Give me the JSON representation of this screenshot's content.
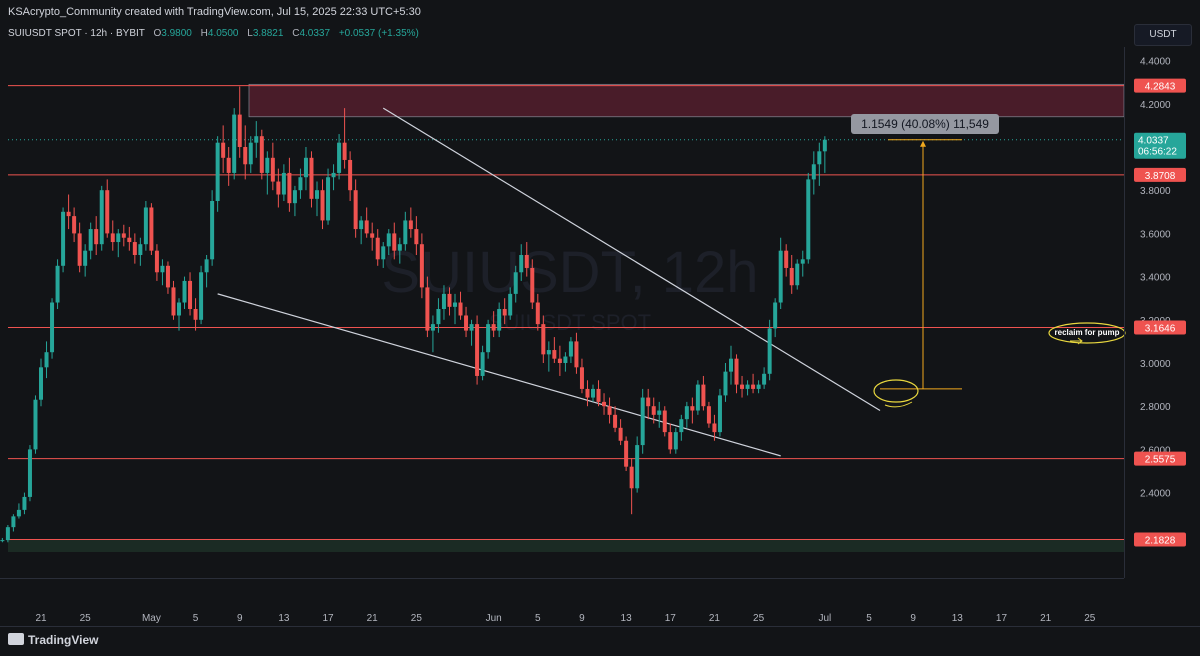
{
  "header": {
    "attribution": "KSAcrypto_Community created with TradingView.com, Jul 15, 2025 22:33 UTC+5:30"
  },
  "legend": {
    "symbol": "SUIUSDT SPOT · 12h · BYBIT",
    "open_label": "O",
    "open": "3.9800",
    "high_label": "H",
    "high": "4.0500",
    "low_label": "L",
    "low": "3.8821",
    "close_label": "C",
    "close": "4.0337",
    "change": "+0.0537 (+1.35%)"
  },
  "unit_button": "USDT",
  "watermark": {
    "main": "SUIUSDT, 12h",
    "sub": "SUIUSDT SPOT"
  },
  "measure_label": "1.1549 (40.08%) 11,549",
  "annotation_text": "reclaim for pump",
  "price_ticks": [
    "4.4000",
    "4.2000",
    "4.0000",
    "3.8000",
    "3.6000",
    "3.4000",
    "3.2000",
    "3.0000",
    "2.8000",
    "2.6000",
    "2.4000"
  ],
  "level_badges": [
    {
      "label": "4.2843",
      "price": 4.2843
    },
    {
      "label": "3.8708",
      "price": 3.8708
    },
    {
      "label": "3.1646",
      "price": 3.1646
    },
    {
      "label": "2.5575",
      "price": 2.5575
    },
    {
      "label": "2.1828",
      "price": 2.1828
    }
  ],
  "current_price": {
    "label": "4.0337",
    "countdown": "06:56:22",
    "price": 4.0337
  },
  "time_ticks": [
    {
      "label": "21",
      "date": "2025-04-21"
    },
    {
      "label": "25",
      "date": "2025-04-25"
    },
    {
      "label": "May",
      "date": "2025-05-01"
    },
    {
      "label": "5",
      "date": "2025-05-05"
    },
    {
      "label": "9",
      "date": "2025-05-09"
    },
    {
      "label": "13",
      "date": "2025-05-13"
    },
    {
      "label": "17",
      "date": "2025-05-17"
    },
    {
      "label": "21",
      "date": "2025-05-21"
    },
    {
      "label": "25",
      "date": "2025-05-25"
    },
    {
      "label": "Jun",
      "date": "2025-06-01"
    },
    {
      "label": "5",
      "date": "2025-06-05"
    },
    {
      "label": "9",
      "date": "2025-06-09"
    },
    {
      "label": "13",
      "date": "2025-06-13"
    },
    {
      "label": "17",
      "date": "2025-06-17"
    },
    {
      "label": "21",
      "date": "2025-06-21"
    },
    {
      "label": "25",
      "date": "2025-06-25"
    },
    {
      "label": "Jul",
      "date": "2025-07-01"
    },
    {
      "label": "5",
      "date": "2025-07-05"
    },
    {
      "label": "9",
      "date": "2025-07-09"
    },
    {
      "label": "13",
      "date": "2025-07-13"
    },
    {
      "label": "17",
      "date": "2025-07-17"
    },
    {
      "label": "21",
      "date": "2025-07-21"
    },
    {
      "label": "25",
      "date": "2025-07-25"
    }
  ],
  "footer": {
    "brand": "TradingView"
  },
  "colors": {
    "up": "#26a69a",
    "down": "#ef5350",
    "level": "#ef5350",
    "trendline": "#cfd3dc",
    "measure": "#f2a91e",
    "zone": "#5c1f30"
  },
  "chart_data": {
    "type": "candlestick",
    "interval": "12h",
    "start_date": "2025-04-17",
    "y_axis_range": [
      2.18,
      4.47
    ],
    "horizontal_levels": [
      4.2843,
      3.8708,
      3.1646,
      2.5575,
      2.1828
    ],
    "resistance_zone": [
      4.14,
      4.29
    ],
    "trendlines": [
      {
        "from": {
          "date": "2025-05-22",
          "price": 4.18
        },
        "to": {
          "date": "2025-07-06",
          "price": 2.78
        }
      },
      {
        "from": {
          "date": "2025-05-07",
          "price": 3.32
        },
        "to": {
          "date": "2025-06-27",
          "price": 2.57
        }
      }
    ],
    "measure": {
      "from_price": 2.88,
      "to_price": 4.0337,
      "change": "1.1549 (40.08%) 11,549"
    },
    "candles": [
      [
        2.17,
        2.18,
        2.16,
        2.18
      ],
      [
        2.18,
        2.19,
        2.17,
        2.18
      ],
      [
        2.18,
        2.25,
        2.17,
        2.24
      ],
      [
        2.24,
        2.3,
        2.22,
        2.29
      ],
      [
        2.29,
        2.35,
        2.28,
        2.32
      ],
      [
        2.32,
        2.4,
        2.3,
        2.38
      ],
      [
        2.38,
        2.62,
        2.36,
        2.6
      ],
      [
        2.6,
        2.85,
        2.58,
        2.83
      ],
      [
        2.83,
        3.02,
        2.8,
        2.98
      ],
      [
        2.98,
        3.1,
        2.93,
        3.05
      ],
      [
        3.05,
        3.3,
        3.02,
        3.28
      ],
      [
        3.28,
        3.48,
        3.25,
        3.45
      ],
      [
        3.45,
        3.72,
        3.42,
        3.7
      ],
      [
        3.7,
        3.78,
        3.62,
        3.68
      ],
      [
        3.68,
        3.72,
        3.56,
        3.6
      ],
      [
        3.6,
        3.65,
        3.42,
        3.45
      ],
      [
        3.45,
        3.55,
        3.4,
        3.52
      ],
      [
        3.52,
        3.65,
        3.48,
        3.62
      ],
      [
        3.62,
        3.68,
        3.5,
        3.55
      ],
      [
        3.55,
        3.82,
        3.52,
        3.8
      ],
      [
        3.8,
        3.85,
        3.58,
        3.6
      ],
      [
        3.6,
        3.66,
        3.52,
        3.56
      ],
      [
        3.56,
        3.62,
        3.49,
        3.6
      ],
      [
        3.6,
        3.64,
        3.54,
        3.58
      ],
      [
        3.58,
        3.63,
        3.52,
        3.56
      ],
      [
        3.56,
        3.6,
        3.46,
        3.5
      ],
      [
        3.5,
        3.58,
        3.45,
        3.55
      ],
      [
        3.55,
        3.75,
        3.52,
        3.72
      ],
      [
        3.72,
        3.74,
        3.5,
        3.52
      ],
      [
        3.52,
        3.55,
        3.38,
        3.42
      ],
      [
        3.42,
        3.48,
        3.36,
        3.45
      ],
      [
        3.45,
        3.47,
        3.32,
        3.35
      ],
      [
        3.35,
        3.38,
        3.2,
        3.22
      ],
      [
        3.22,
        3.3,
        3.15,
        3.28
      ],
      [
        3.28,
        3.4,
        3.25,
        3.38
      ],
      [
        3.38,
        3.42,
        3.22,
        3.25
      ],
      [
        3.25,
        3.3,
        3.15,
        3.2
      ],
      [
        3.2,
        3.45,
        3.18,
        3.42
      ],
      [
        3.42,
        3.5,
        3.35,
        3.48
      ],
      [
        3.48,
        3.8,
        3.45,
        3.75
      ],
      [
        3.75,
        4.05,
        3.7,
        4.02
      ],
      [
        4.02,
        4.1,
        3.88,
        3.95
      ],
      [
        3.95,
        4.0,
        3.82,
        3.88
      ],
      [
        3.88,
        4.18,
        3.85,
        4.15
      ],
      [
        4.15,
        4.28,
        3.95,
        4.0
      ],
      [
        4.0,
        4.1,
        3.85,
        3.92
      ],
      [
        3.92,
        4.05,
        3.88,
        4.02
      ],
      [
        4.02,
        4.12,
        3.95,
        4.05
      ],
      [
        4.05,
        4.08,
        3.85,
        3.88
      ],
      [
        3.88,
        3.98,
        3.78,
        3.95
      ],
      [
        3.95,
        4.02,
        3.8,
        3.84
      ],
      [
        3.84,
        3.9,
        3.72,
        3.78
      ],
      [
        3.78,
        3.92,
        3.75,
        3.88
      ],
      [
        3.88,
        3.95,
        3.7,
        3.74
      ],
      [
        3.74,
        3.82,
        3.68,
        3.8
      ],
      [
        3.8,
        3.9,
        3.76,
        3.86
      ],
      [
        3.86,
        4.0,
        3.8,
        3.95
      ],
      [
        3.95,
        3.98,
        3.72,
        3.76
      ],
      [
        3.76,
        3.84,
        3.68,
        3.8
      ],
      [
        3.8,
        3.85,
        3.62,
        3.66
      ],
      [
        3.66,
        3.9,
        3.64,
        3.86
      ],
      [
        3.86,
        3.92,
        3.8,
        3.88
      ],
      [
        3.88,
        4.06,
        3.85,
        4.02
      ],
      [
        4.02,
        4.18,
        3.9,
        3.94
      ],
      [
        3.94,
        3.98,
        3.75,
        3.8
      ],
      [
        3.8,
        3.85,
        3.58,
        3.62
      ],
      [
        3.62,
        3.68,
        3.55,
        3.66
      ],
      [
        3.66,
        3.72,
        3.58,
        3.6
      ],
      [
        3.6,
        3.65,
        3.52,
        3.58
      ],
      [
        3.58,
        3.62,
        3.45,
        3.48
      ],
      [
        3.48,
        3.56,
        3.44,
        3.54
      ],
      [
        3.54,
        3.62,
        3.5,
        3.6
      ],
      [
        3.6,
        3.65,
        3.48,
        3.52
      ],
      [
        3.52,
        3.58,
        3.46,
        3.55
      ],
      [
        3.55,
        3.7,
        3.52,
        3.66
      ],
      [
        3.66,
        3.72,
        3.58,
        3.62
      ],
      [
        3.62,
        3.68,
        3.5,
        3.55
      ],
      [
        3.55,
        3.6,
        3.3,
        3.35
      ],
      [
        3.35,
        3.4,
        3.12,
        3.15
      ],
      [
        3.15,
        3.22,
        3.05,
        3.18
      ],
      [
        3.18,
        3.3,
        3.14,
        3.25
      ],
      [
        3.25,
        3.36,
        3.2,
        3.32
      ],
      [
        3.32,
        3.35,
        3.22,
        3.26
      ],
      [
        3.26,
        3.32,
        3.18,
        3.28
      ],
      [
        3.28,
        3.33,
        3.2,
        3.22
      ],
      [
        3.22,
        3.26,
        3.12,
        3.15
      ],
      [
        3.15,
        3.2,
        3.08,
        3.18
      ],
      [
        3.18,
        3.22,
        2.9,
        2.94
      ],
      [
        2.94,
        3.08,
        2.92,
        3.05
      ],
      [
        3.05,
        3.2,
        3.02,
        3.18
      ],
      [
        3.18,
        3.24,
        3.12,
        3.15
      ],
      [
        3.15,
        3.28,
        3.12,
        3.25
      ],
      [
        3.25,
        3.3,
        3.18,
        3.22
      ],
      [
        3.22,
        3.35,
        3.2,
        3.32
      ],
      [
        3.32,
        3.45,
        3.28,
        3.42
      ],
      [
        3.42,
        3.55,
        3.38,
        3.5
      ],
      [
        3.5,
        3.56,
        3.4,
        3.44
      ],
      [
        3.44,
        3.48,
        3.25,
        3.28
      ],
      [
        3.28,
        3.32,
        3.15,
        3.18
      ],
      [
        3.18,
        3.22,
        3.0,
        3.04
      ],
      [
        3.04,
        3.1,
        2.96,
        3.06
      ],
      [
        3.06,
        3.12,
        3.0,
        3.02
      ],
      [
        3.02,
        3.08,
        2.94,
        3.0
      ],
      [
        3.0,
        3.05,
        2.96,
        3.03
      ],
      [
        3.03,
        3.12,
        3.0,
        3.1
      ],
      [
        3.1,
        3.14,
        2.95,
        2.98
      ],
      [
        2.98,
        3.02,
        2.86,
        2.88
      ],
      [
        2.88,
        2.92,
        2.8,
        2.84
      ],
      [
        2.84,
        2.9,
        2.82,
        2.88
      ],
      [
        2.88,
        2.92,
        2.8,
        2.82
      ],
      [
        2.82,
        2.86,
        2.76,
        2.8
      ],
      [
        2.8,
        2.84,
        2.72,
        2.76
      ],
      [
        2.76,
        2.8,
        2.68,
        2.7
      ],
      [
        2.7,
        2.74,
        2.62,
        2.64
      ],
      [
        2.64,
        2.66,
        2.5,
        2.52
      ],
      [
        2.52,
        2.56,
        2.3,
        2.42
      ],
      [
        2.42,
        2.66,
        2.4,
        2.62
      ],
      [
        2.62,
        2.88,
        2.58,
        2.84
      ],
      [
        2.84,
        2.88,
        2.74,
        2.8
      ],
      [
        2.8,
        2.84,
        2.72,
        2.76
      ],
      [
        2.76,
        2.82,
        2.7,
        2.78
      ],
      [
        2.78,
        2.8,
        2.66,
        2.68
      ],
      [
        2.68,
        2.72,
        2.58,
        2.6
      ],
      [
        2.6,
        2.7,
        2.58,
        2.68
      ],
      [
        2.68,
        2.76,
        2.64,
        2.74
      ],
      [
        2.74,
        2.82,
        2.7,
        2.8
      ],
      [
        2.8,
        2.84,
        2.72,
        2.78
      ],
      [
        2.78,
        2.92,
        2.76,
        2.9
      ],
      [
        2.9,
        2.94,
        2.78,
        2.8
      ],
      [
        2.8,
        2.82,
        2.7,
        2.72
      ],
      [
        2.72,
        2.76,
        2.64,
        2.68
      ],
      [
        2.68,
        2.88,
        2.66,
        2.85
      ],
      [
        2.85,
        3.0,
        2.82,
        2.96
      ],
      [
        2.96,
        3.08,
        2.9,
        3.02
      ],
      [
        3.02,
        3.04,
        2.86,
        2.9
      ],
      [
        2.9,
        2.94,
        2.84,
        2.88
      ],
      [
        2.88,
        2.92,
        2.85,
        2.9
      ],
      [
        2.9,
        2.95,
        2.86,
        2.88
      ],
      [
        2.88,
        2.92,
        2.86,
        2.9
      ],
      [
        2.9,
        2.98,
        2.88,
        2.95
      ],
      [
        2.95,
        3.2,
        2.92,
        3.16
      ],
      [
        3.16,
        3.3,
        3.12,
        3.28
      ],
      [
        3.28,
        3.58,
        3.25,
        3.52
      ],
      [
        3.52,
        3.55,
        3.4,
        3.44
      ],
      [
        3.44,
        3.5,
        3.32,
        3.36
      ],
      [
        3.36,
        3.48,
        3.34,
        3.46
      ],
      [
        3.46,
        3.52,
        3.4,
        3.48
      ],
      [
        3.48,
        3.88,
        3.46,
        3.85
      ],
      [
        3.85,
        3.98,
        3.78,
        3.92
      ],
      [
        3.92,
        4.02,
        3.82,
        3.98
      ],
      [
        3.98,
        4.05,
        3.88,
        4.0337
      ]
    ]
  }
}
